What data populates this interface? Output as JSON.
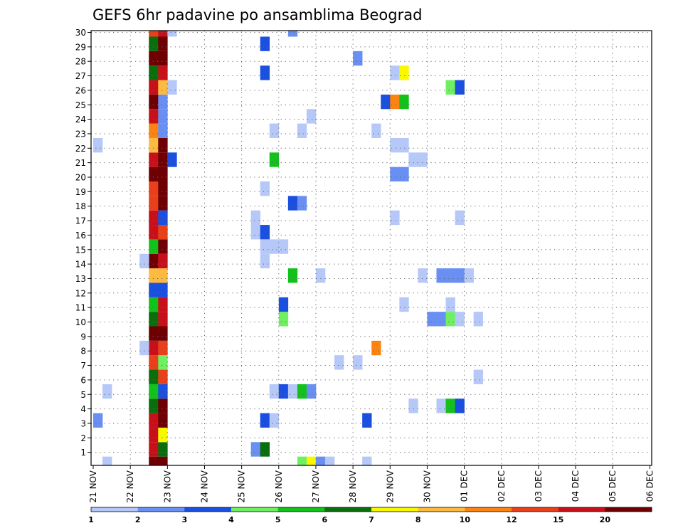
{
  "chart_data": {
    "type": "heatmap",
    "title": "GEFS 6hr padavine po ansamblima Beograd",
    "xlabel": "",
    "ylabel": "",
    "x_ticks": [
      "21 NOV",
      "22 NOV",
      "23 NOV",
      "24 NOV",
      "25 NOV",
      "26 NOV",
      "27 NOV",
      "28 NOV",
      "29 NOV",
      "30 NOV",
      "01 DEC",
      "02 DEC",
      "03 DEC",
      "04 DEC",
      "05 DEC",
      "06 DEC"
    ],
    "y_ticks": [
      "1",
      "2",
      "3",
      "4",
      "5",
      "6",
      "7",
      "8",
      "9",
      "10",
      "11",
      "12",
      "13",
      "14",
      "15",
      "16",
      "17",
      "18",
      "19",
      "20",
      "21",
      "22",
      "23",
      "24",
      "25",
      "26",
      "27",
      "28",
      "29",
      "30"
    ],
    "x_unit": "6-hour steps from 21 NOV 00Z",
    "xlim_steps": [
      0,
      60
    ],
    "ylim": [
      0,
      30
    ],
    "grid": true,
    "colorbar": {
      "labels": [
        "1",
        "2",
        "3",
        "4",
        "5",
        "6",
        "7",
        "8",
        "10",
        "12",
        "15",
        "20"
      ],
      "colors": [
        "#b6c8f8",
        "#6a8ff2",
        "#1a4fe0",
        "#6ef060",
        "#12c21a",
        "#0a6e0c",
        "#f8f800",
        "#fcbb40",
        "#fa8314",
        "#e8401a",
        "#c8101a",
        "#6e0004"
      ]
    },
    "cells": [
      [
        6,
        0,
        11
      ],
      [
        6,
        1,
        10
      ],
      [
        6,
        2,
        10
      ],
      [
        6,
        3,
        10
      ],
      [
        6,
        4,
        5
      ],
      [
        6,
        5,
        4
      ],
      [
        6,
        6,
        5
      ],
      [
        6,
        7,
        9
      ],
      [
        6,
        8,
        10
      ],
      [
        6,
        9,
        11
      ],
      [
        6,
        10,
        5
      ],
      [
        6,
        11,
        4
      ],
      [
        6,
        12,
        2
      ],
      [
        6,
        13,
        7
      ],
      [
        6,
        14,
        11
      ],
      [
        6,
        15,
        4
      ],
      [
        6,
        16,
        10
      ],
      [
        6,
        17,
        10
      ],
      [
        6,
        18,
        9
      ],
      [
        6,
        19,
        9
      ],
      [
        6,
        20,
        11
      ],
      [
        6,
        21,
        10
      ],
      [
        6,
        22,
        7
      ],
      [
        6,
        23,
        8
      ],
      [
        6,
        24,
        10
      ],
      [
        6,
        25,
        11
      ],
      [
        6,
        26,
        10
      ],
      [
        6,
        27,
        5
      ],
      [
        6,
        28,
        11
      ],
      [
        6,
        29,
        5
      ],
      [
        6,
        30,
        9
      ],
      [
        7,
        0,
        11
      ],
      [
        7,
        1,
        5
      ],
      [
        7,
        2,
        6
      ],
      [
        7,
        3,
        11
      ],
      [
        7,
        4,
        11
      ],
      [
        7,
        5,
        2
      ],
      [
        7,
        6,
        9
      ],
      [
        7,
        7,
        3
      ],
      [
        7,
        8,
        9
      ],
      [
        7,
        9,
        11
      ],
      [
        7,
        10,
        10
      ],
      [
        7,
        11,
        10
      ],
      [
        7,
        12,
        2
      ],
      [
        7,
        13,
        7
      ],
      [
        7,
        14,
        10
      ],
      [
        7,
        15,
        11
      ],
      [
        7,
        16,
        9
      ],
      [
        7,
        17,
        2
      ],
      [
        7,
        18,
        11
      ],
      [
        7,
        19,
        11
      ],
      [
        7,
        20,
        11
      ],
      [
        7,
        21,
        11
      ],
      [
        7,
        22,
        11
      ],
      [
        7,
        23,
        1
      ],
      [
        7,
        24,
        1
      ],
      [
        7,
        25,
        1
      ],
      [
        7,
        26,
        7
      ],
      [
        7,
        27,
        10
      ],
      [
        7,
        28,
        11
      ],
      [
        7,
        29,
        11
      ],
      [
        7,
        30,
        10
      ],
      [
        8,
        21,
        2
      ],
      [
        8,
        26,
        0
      ],
      [
        8,
        30,
        0
      ],
      [
        1,
        0,
        0
      ],
      [
        0,
        3,
        1
      ],
      [
        1,
        5,
        0
      ],
      [
        0,
        22,
        0
      ],
      [
        5,
        8,
        0
      ],
      [
        5,
        14,
        0
      ],
      [
        17,
        1,
        1
      ],
      [
        18,
        1,
        5
      ],
      [
        18,
        3,
        2
      ],
      [
        19,
        3,
        0
      ],
      [
        17,
        16,
        0
      ],
      [
        17,
        17,
        0
      ],
      [
        18,
        16,
        2
      ],
      [
        18,
        15,
        0
      ],
      [
        18,
        19,
        0
      ],
      [
        19,
        21,
        4
      ],
      [
        19,
        23,
        0
      ],
      [
        19,
        5,
        0
      ],
      [
        20,
        5,
        2
      ],
      [
        21,
        5,
        0
      ],
      [
        20,
        10,
        3
      ],
      [
        20,
        11,
        2
      ],
      [
        21,
        13,
        4
      ],
      [
        21,
        18,
        2
      ],
      [
        22,
        18,
        1
      ],
      [
        19,
        15,
        0
      ],
      [
        20,
        15,
        0
      ],
      [
        18,
        14,
        0
      ],
      [
        18,
        29,
        2
      ],
      [
        18,
        27,
        2
      ],
      [
        21,
        30,
        1
      ],
      [
        22,
        0,
        3
      ],
      [
        23,
        0,
        6
      ],
      [
        24,
        0,
        1
      ],
      [
        25,
        0,
        0
      ],
      [
        22,
        5,
        4
      ],
      [
        23,
        5,
        1
      ],
      [
        24,
        13,
        0
      ],
      [
        23,
        24,
        0
      ],
      [
        22,
        23,
        0
      ],
      [
        26,
        7,
        0
      ],
      [
        28,
        7,
        0
      ],
      [
        29,
        0,
        0
      ],
      [
        28,
        28,
        1
      ],
      [
        29,
        3,
        2
      ],
      [
        30,
        8,
        8
      ],
      [
        31,
        25,
        2
      ],
      [
        32,
        25,
        8
      ],
      [
        33,
        25,
        4
      ],
      [
        30,
        23,
        0
      ],
      [
        32,
        27,
        0
      ],
      [
        33,
        27,
        6
      ],
      [
        32,
        20,
        1
      ],
      [
        33,
        20,
        1
      ],
      [
        32,
        22,
        0
      ],
      [
        33,
        22,
        0
      ],
      [
        32,
        17,
        0
      ],
      [
        33,
        11,
        0
      ],
      [
        34,
        4,
        0
      ],
      [
        34,
        21,
        0
      ],
      [
        35,
        21,
        0
      ],
      [
        35,
        13,
        0
      ],
      [
        36,
        10,
        1
      ],
      [
        37,
        10,
        1
      ],
      [
        37,
        4,
        0
      ],
      [
        38,
        4,
        4
      ],
      [
        39,
        4,
        2
      ],
      [
        37,
        13,
        1
      ],
      [
        38,
        13,
        1
      ],
      [
        39,
        13,
        1
      ],
      [
        40,
        13,
        0
      ],
      [
        38,
        10,
        3
      ],
      [
        39,
        10,
        0
      ],
      [
        38,
        11,
        0
      ],
      [
        38,
        26,
        3
      ],
      [
        39,
        26,
        2
      ],
      [
        39,
        17,
        0
      ],
      [
        41,
        10,
        0
      ],
      [
        41,
        6,
        0
      ]
    ]
  }
}
